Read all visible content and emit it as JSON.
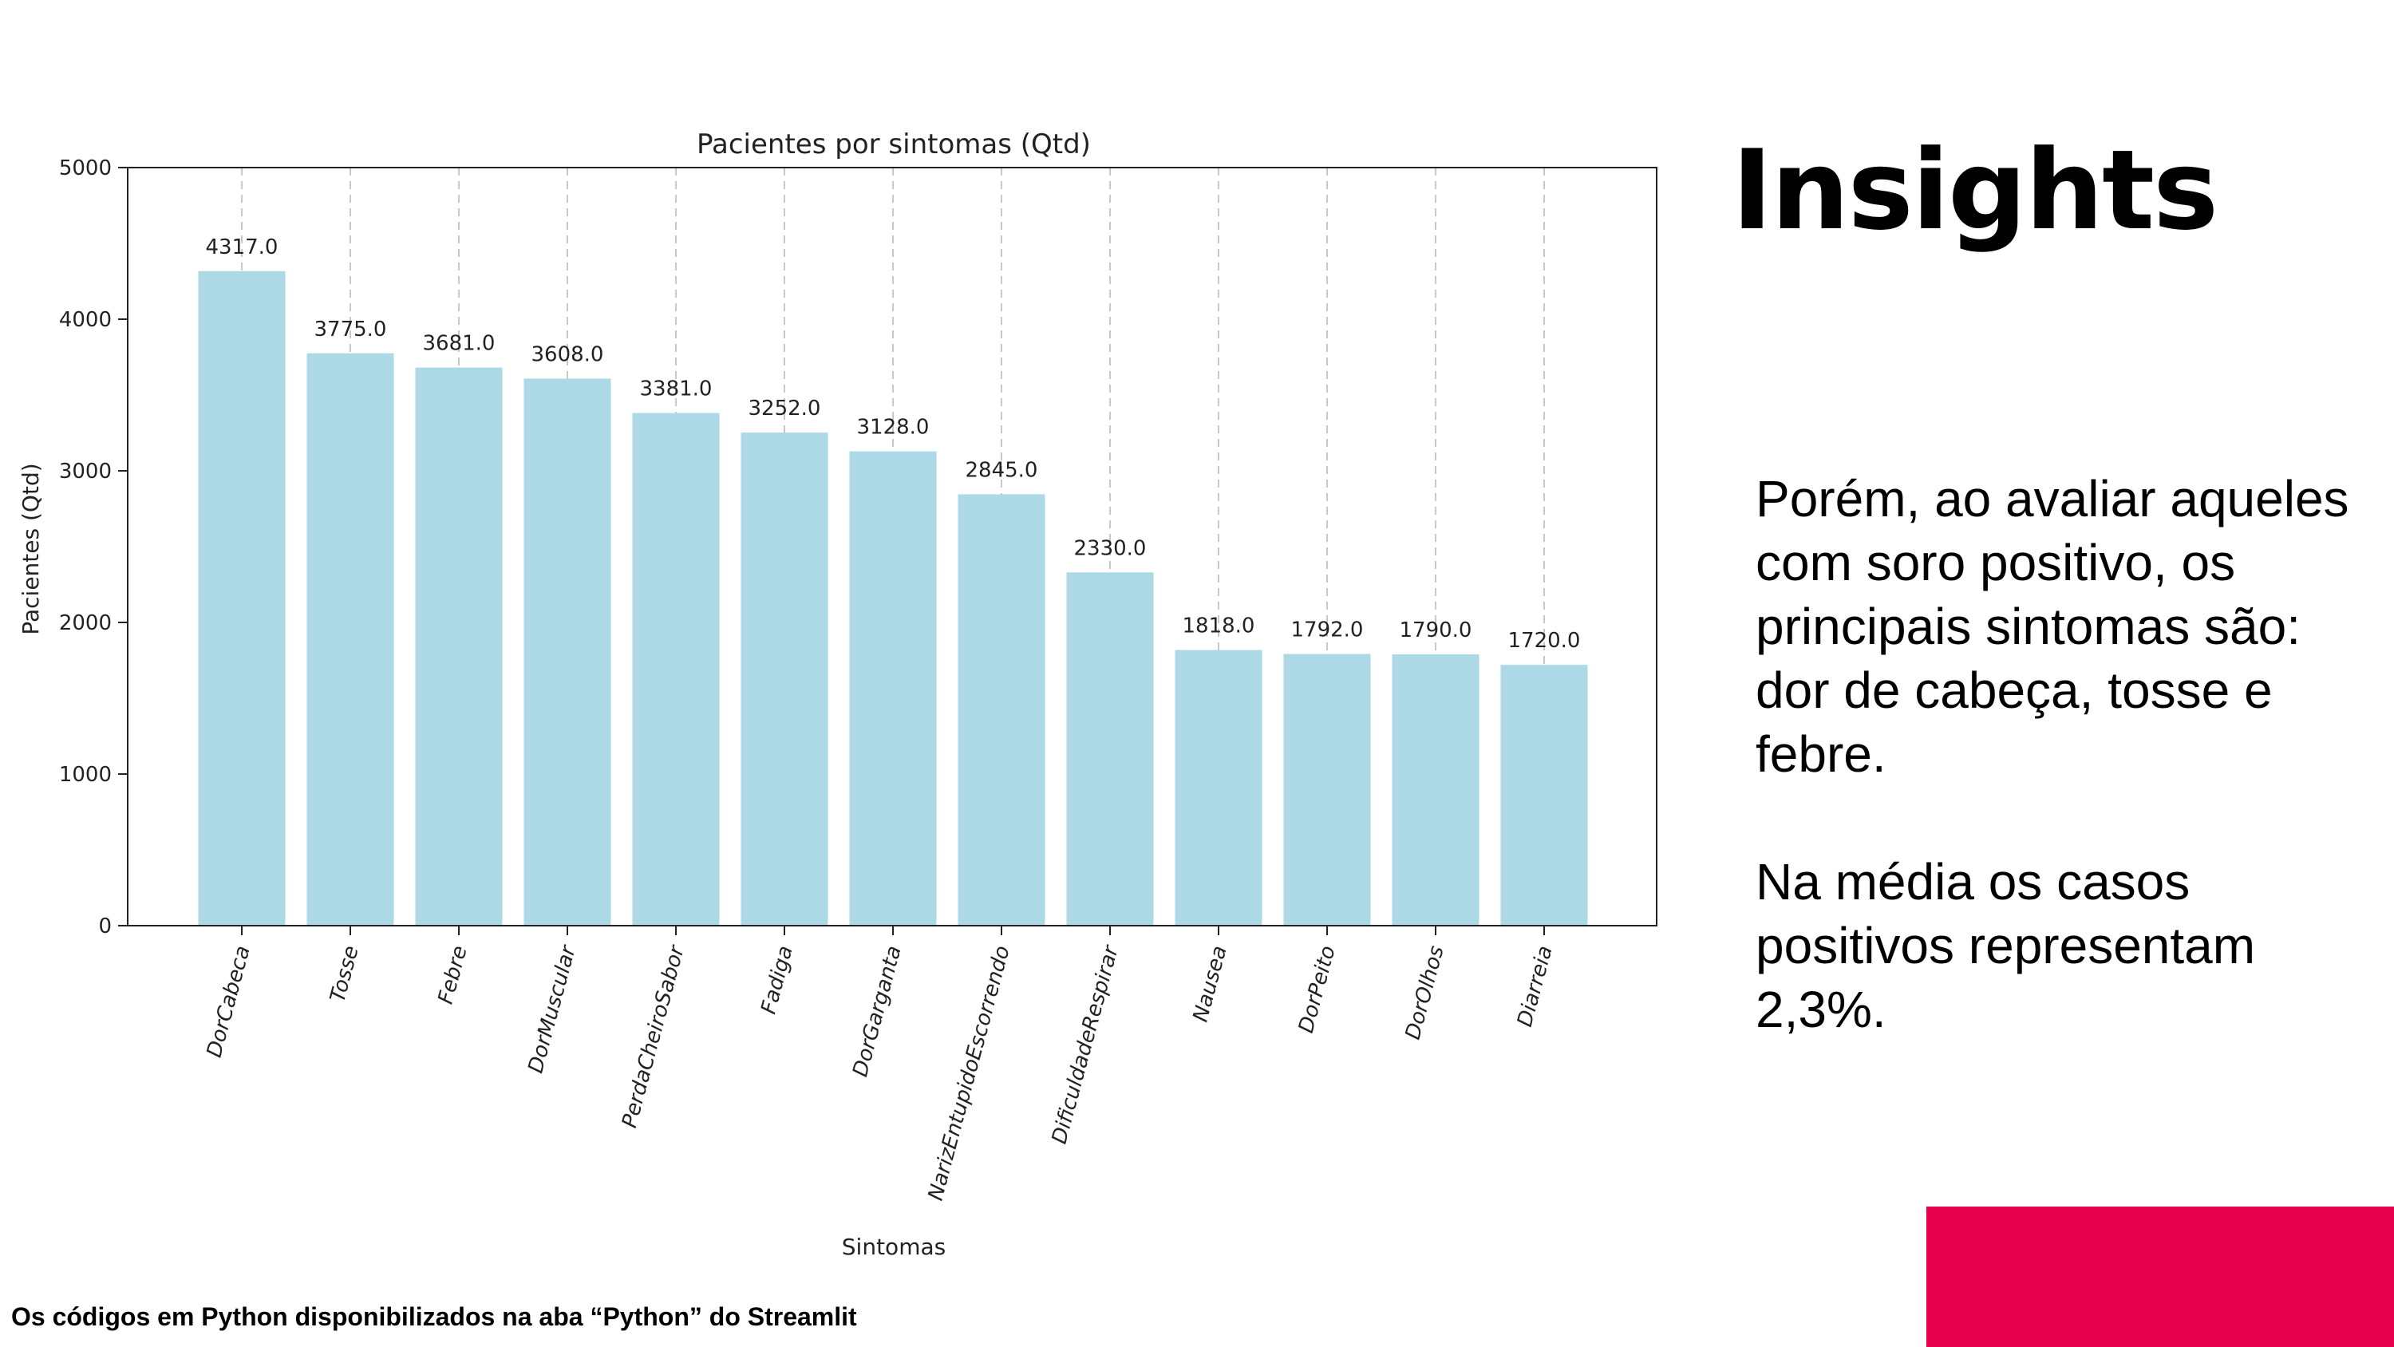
{
  "chart_data": {
    "type": "bar",
    "title": "Pacientes por sintomas (Qtd)",
    "xlabel": "Sintomas",
    "ylabel": "Pacientes (Qtd)",
    "ylim": [
      0,
      5000
    ],
    "yticks": [
      0,
      1000,
      2000,
      3000,
      4000,
      5000
    ],
    "categories": [
      "DorCabeca",
      "Tosse",
      "Febre",
      "DorMuscular",
      "PerdaCheiroSabor",
      "Fadiga",
      "DorGarganta",
      "NarizEntupidoEscorrendo",
      "DificuldadeRespirar",
      "Nausea",
      "DorPeito",
      "DorOlhos",
      "Diarreia"
    ],
    "values": [
      4317.0,
      3775.0,
      3681.0,
      3608.0,
      3381.0,
      3252.0,
      3128.0,
      2845.0,
      2330.0,
      1818.0,
      1792.0,
      1790.0,
      1720.0
    ],
    "value_labels": [
      "4317.0",
      "3775.0",
      "3681.0",
      "3608.0",
      "3381.0",
      "3252.0",
      "3128.0",
      "2845.0",
      "2330.0",
      "1818.0",
      "1792.0",
      "1790.0",
      "1720.0"
    ],
    "grid": "x-dashed",
    "bar_color": "#add8e6"
  },
  "insights": {
    "title": "Insights",
    "paragraph1": "Porém, ao avaliar aqueles com soro positivo, os principais sintomas são: dor de cabeça, tosse e febre.",
    "paragraph2": "Na média os casos positivos representam 2,3%."
  },
  "footer": {
    "note": "Os códigos em Python disponibilizados na aba “Python” do Streamlit"
  },
  "colors": {
    "accent": "#e8004f"
  }
}
